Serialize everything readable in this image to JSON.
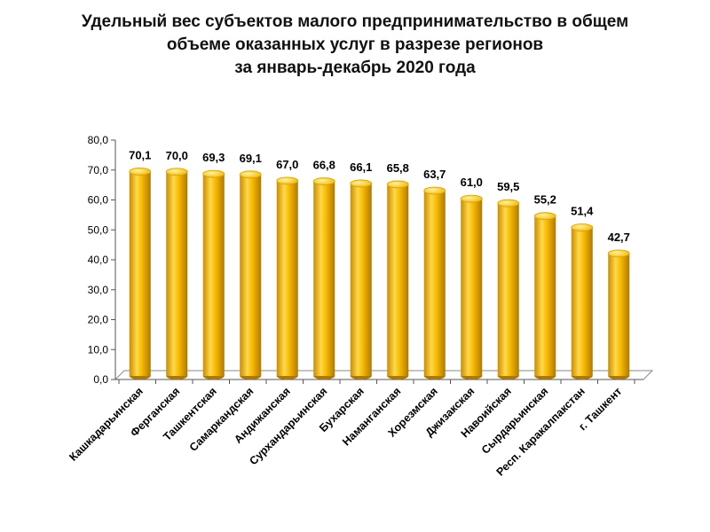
{
  "title": {
    "line1": "Удельный вес субъектов малого предпринимательство в общем",
    "line2": "объеме оказанных услуг в разрезе регионов",
    "line3": "за январь-декабрь 2020 года"
  },
  "colors": {
    "bar": "#F5B800",
    "bar_dark": "#C98C00",
    "bar_light": "#FFE066",
    "axis": "#000000"
  },
  "chart_data": {
    "type": "bar",
    "categories": [
      "Кашкадарьинская",
      "Ферганская",
      "Ташкентская",
      "Самаркандская",
      "Андижанская",
      "Сурхандарьинская",
      "Бухарская",
      "Наманганская",
      "Хорезмская",
      "Джизакская",
      "Навоийская",
      "Сырдарьинская",
      "Респ. Каракалпакстан",
      "г. Ташкент"
    ],
    "values": [
      70.1,
      70.0,
      69.3,
      69.1,
      67.0,
      66.8,
      66.1,
      65.8,
      63.7,
      61.0,
      59.5,
      55.2,
      51.4,
      42.7
    ],
    "value_labels": [
      "70,1",
      "70,0",
      "69,3",
      "69,1",
      "67,0",
      "66,8",
      "66,1",
      "65,8",
      "63,7",
      "61,0",
      "59,5",
      "55,2",
      "51,4",
      "42,7"
    ],
    "ylim": [
      0,
      80
    ],
    "yticks": [
      0,
      10,
      20,
      30,
      40,
      50,
      60,
      70,
      80
    ],
    "ytick_labels": [
      "0,0",
      "10,0",
      "20,0",
      "30,0",
      "40,0",
      "50,0",
      "60,0",
      "70,0",
      "80,0"
    ],
    "grid": false,
    "legend": "none",
    "style": "3d-cylinder"
  }
}
